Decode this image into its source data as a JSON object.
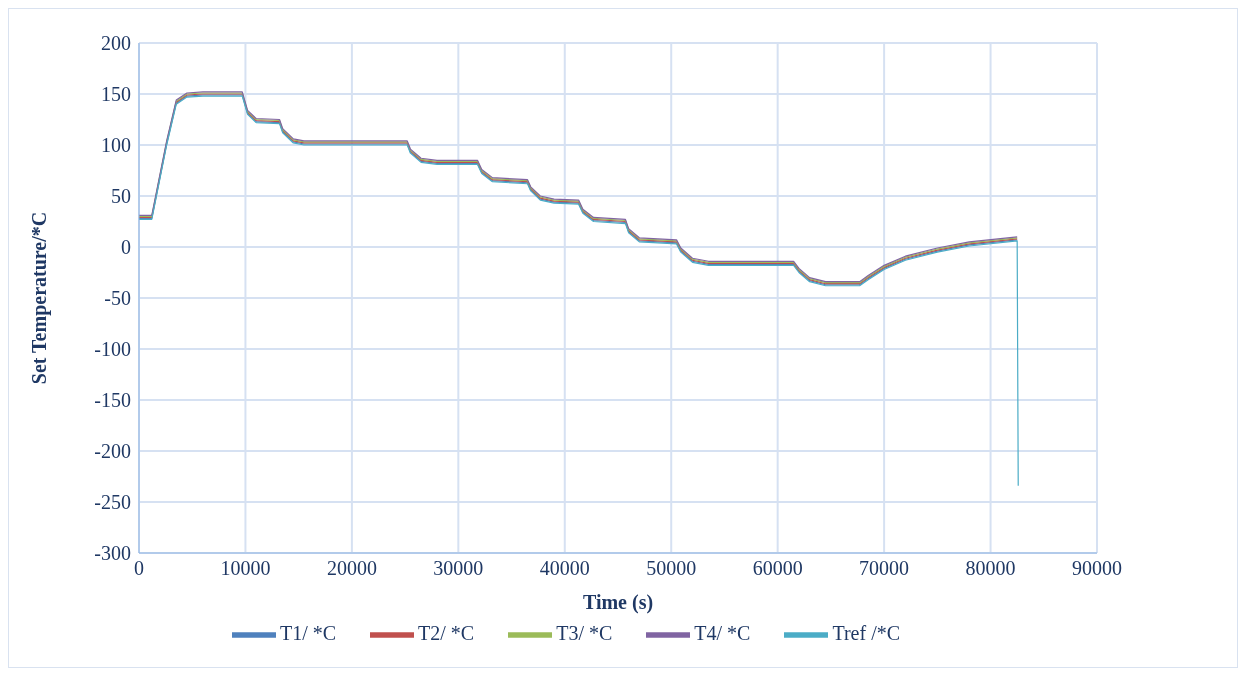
{
  "chart_data": {
    "type": "line",
    "xlabel": "Time (s)",
    "ylabel": "Set Temperature/*C",
    "x": [
      0,
      1200,
      2600,
      3500,
      4500,
      6000,
      9700,
      10200,
      11000,
      13200,
      13500,
      14500,
      15500,
      25200,
      25500,
      26500,
      28000,
      31800,
      32200,
      33200,
      36500,
      36800,
      37700,
      39000,
      41300,
      41700,
      42700,
      45700,
      46000,
      47000,
      50500,
      50900,
      52000,
      53500,
      61500,
      62000,
      63000,
      64500,
      67700,
      68500,
      70000,
      72000,
      75000,
      78000,
      82500,
      82600
    ],
    "series": [
      {
        "name": "T1/ *C",
        "color": "#4f81bd",
        "values": [
          28,
          28,
          101,
          141,
          148,
          149,
          149,
          131,
          123,
          122,
          113,
          103,
          101,
          101,
          93,
          84,
          82,
          82,
          73,
          65,
          63,
          56,
          47,
          44,
          43,
          34,
          26,
          24,
          15,
          6,
          4,
          -4,
          -14,
          -17,
          -17,
          -24,
          -33,
          -37,
          -37,
          -31,
          -21,
          -12,
          -4,
          2,
          7,
          null
        ]
      },
      {
        "name": "T2/ *C",
        "color": "#c0504d",
        "values": [
          29,
          29,
          102,
          142,
          149,
          150,
          150,
          132,
          124,
          123,
          114,
          104,
          102,
          102,
          94,
          85,
          83,
          83,
          74,
          66,
          64,
          57,
          48,
          45,
          44,
          35,
          27,
          25,
          16,
          7,
          5,
          -3,
          -13,
          -16,
          -16,
          -23,
          -32,
          -36,
          -36,
          -30,
          -20,
          -11,
          -3,
          3,
          8,
          null
        ]
      },
      {
        "name": "T3/ *C",
        "color": "#9bbb59",
        "values": [
          30,
          30,
          103,
          143,
          150,
          151,
          151,
          133,
          125,
          124,
          115,
          105,
          103,
          103,
          95,
          86,
          84,
          84,
          75,
          67,
          65,
          58,
          49,
          46,
          45,
          36,
          28,
          26,
          17,
          8,
          6,
          -2,
          -12,
          -15,
          -15,
          -22,
          -31,
          -35,
          -35,
          -29,
          -19,
          -10,
          -2,
          4,
          9,
          null
        ]
      },
      {
        "name": "T4/ *C",
        "color": "#8064a2",
        "values": [
          31,
          31,
          104,
          144,
          151,
          152,
          152,
          134,
          126,
          125,
          116,
          106,
          104,
          104,
          96,
          87,
          85,
          85,
          76,
          68,
          66,
          59,
          50,
          47,
          46,
          37,
          29,
          27,
          18,
          9,
          7,
          -1,
          -11,
          -14,
          -14,
          -21,
          -30,
          -34,
          -34,
          -28,
          -18,
          -9,
          -1,
          5,
          10,
          null
        ]
      },
      {
        "name": "Tref /*C",
        "color": "#4bacc6",
        "values": [
          27,
          27,
          100,
          140,
          147,
          148,
          148,
          130,
          122,
          121,
          112,
          102,
          100,
          100,
          92,
          83,
          81,
          81,
          72,
          64,
          62,
          55,
          46,
          43,
          42,
          33,
          25,
          23,
          14,
          5,
          3,
          -5,
          -15,
          -18,
          -18,
          -25,
          -34,
          -38,
          -38,
          -32,
          -22,
          -13,
          -5,
          1,
          6,
          -234
        ]
      }
    ],
    "xlim": [
      0,
      90000
    ],
    "xticks": [
      0,
      10000,
      20000,
      30000,
      40000,
      50000,
      60000,
      70000,
      80000,
      90000
    ],
    "ylim": [
      -300,
      200
    ],
    "yticks": [
      -300,
      -250,
      -200,
      -150,
      -100,
      -50,
      0,
      50,
      100,
      150,
      200
    ],
    "grid": true,
    "legend": "bottom",
    "marker": "none",
    "line_style": "solid"
  }
}
